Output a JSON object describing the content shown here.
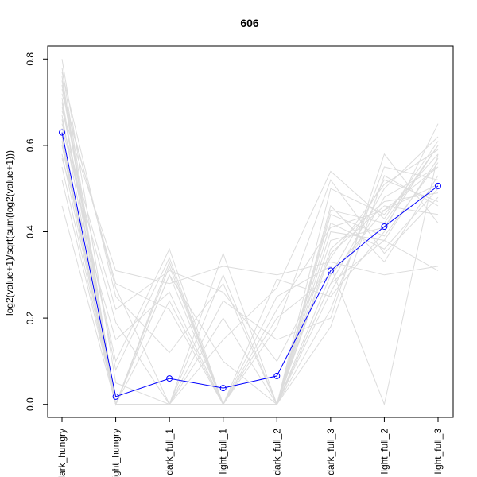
{
  "chart_data": {
    "type": "line",
    "title": "606",
    "xlabel": "",
    "ylabel": "log2(value+1)/sqrt(sum(log2(value+1)))",
    "categories": [
      "dark_hungry",
      "light_hungry",
      "dark_full_1",
      "light_full_1",
      "dark_full_2",
      "dark_full_3",
      "light_full_2",
      "light_full_3"
    ],
    "yticks": [
      "0.0",
      "0.2",
      "0.4",
      "0.6",
      "0.8"
    ],
    "ylim": [
      -0.03,
      0.83
    ],
    "grid": false,
    "series": [
      {
        "values": [
          0.63,
          0.018,
          0.06,
          0.038,
          0.066,
          0.31,
          0.412,
          0.506
        ],
        "color": "#0000ff"
      }
    ],
    "background_series_color": "#dcdcdc",
    "background_series": [
      [
        0.7,
        0.0,
        0.32,
        0.0,
        0.0,
        0.3,
        0.45,
        0.55
      ],
      [
        0.78,
        0.0,
        0.0,
        0.0,
        0.0,
        0.45,
        0.42,
        0.6
      ],
      [
        0.72,
        0.28,
        0.22,
        0.0,
        0.18,
        0.52,
        0.35,
        0.48
      ],
      [
        0.8,
        0.05,
        0.0,
        0.3,
        0.0,
        0.28,
        0.5,
        0.62
      ],
      [
        0.76,
        0.0,
        0.33,
        0.0,
        0.0,
        0.4,
        0.38,
        0.57
      ],
      [
        0.68,
        0.31,
        0.28,
        0.32,
        0.3,
        0.33,
        0.3,
        0.32
      ],
      [
        0.74,
        0.0,
        0.0,
        0.2,
        0.0,
        0.22,
        0.55,
        0.52
      ],
      [
        0.66,
        0.1,
        0.36,
        0.0,
        0.0,
        0.5,
        0.44,
        0.58
      ],
      [
        0.62,
        0.0,
        0.0,
        0.0,
        0.29,
        0.25,
        0.4,
        0.65
      ],
      [
        0.58,
        0.0,
        0.33,
        0.0,
        0.0,
        0.35,
        0.46,
        0.44
      ],
      [
        0.73,
        0.27,
        0.0,
        0.35,
        0.0,
        0.42,
        0.36,
        0.5
      ],
      [
        0.55,
        0.0,
        0.24,
        0.0,
        0.2,
        0.3,
        0.52,
        0.47
      ],
      [
        0.64,
        0.19,
        0.0,
        0.0,
        0.0,
        0.26,
        0.48,
        0.55
      ],
      [
        0.71,
        0.0,
        0.3,
        0.1,
        0.0,
        0.38,
        0.41,
        0.6
      ],
      [
        0.52,
        0.0,
        0.0,
        0.24,
        0.15,
        0.2,
        0.58,
        0.42
      ],
      [
        0.69,
        0.08,
        0.34,
        0.0,
        0.0,
        0.46,
        0.33,
        0.53
      ],
      [
        0.6,
        0.0,
        0.0,
        0.0,
        0.25,
        0.32,
        0.0,
        0.58
      ],
      [
        0.77,
        0.25,
        0.12,
        0.28,
        0.0,
        0.36,
        0.47,
        0.49
      ],
      [
        0.46,
        0.0,
        0.3,
        0.0,
        0.0,
        0.28,
        0.38,
        0.31
      ],
      [
        0.67,
        0.0,
        0.0,
        0.15,
        0.27,
        0.54,
        0.43,
        0.61
      ],
      [
        0.57,
        0.15,
        0.26,
        0.0,
        0.0,
        0.18,
        0.53,
        0.46
      ],
      [
        0.75,
        0.0,
        0.0,
        0.0,
        0.0,
        0.44,
        0.39,
        0.56
      ],
      [
        0.65,
        0.22,
        0.31,
        0.26,
        0.1,
        0.34,
        0.51,
        0.59
      ],
      [
        0.61,
        0.0,
        0.0,
        0.0,
        0.22,
        0.41,
        0.45,
        0.51
      ]
    ]
  }
}
